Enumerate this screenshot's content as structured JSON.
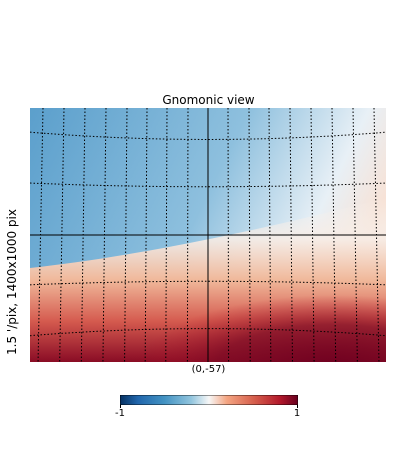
{
  "chart_data": {
    "type": "heatmap",
    "title": "Gnomonic view",
    "ylabel": "1.5 '/pix,   1400x1000 pix",
    "center_label": "(0,-57)",
    "colormap": "RdBu_r",
    "colorbar": {
      "min": -1,
      "max": 1,
      "min_label": "-1",
      "max_label": "1"
    },
    "graticule": "dotted",
    "crosshair": true
  }
}
